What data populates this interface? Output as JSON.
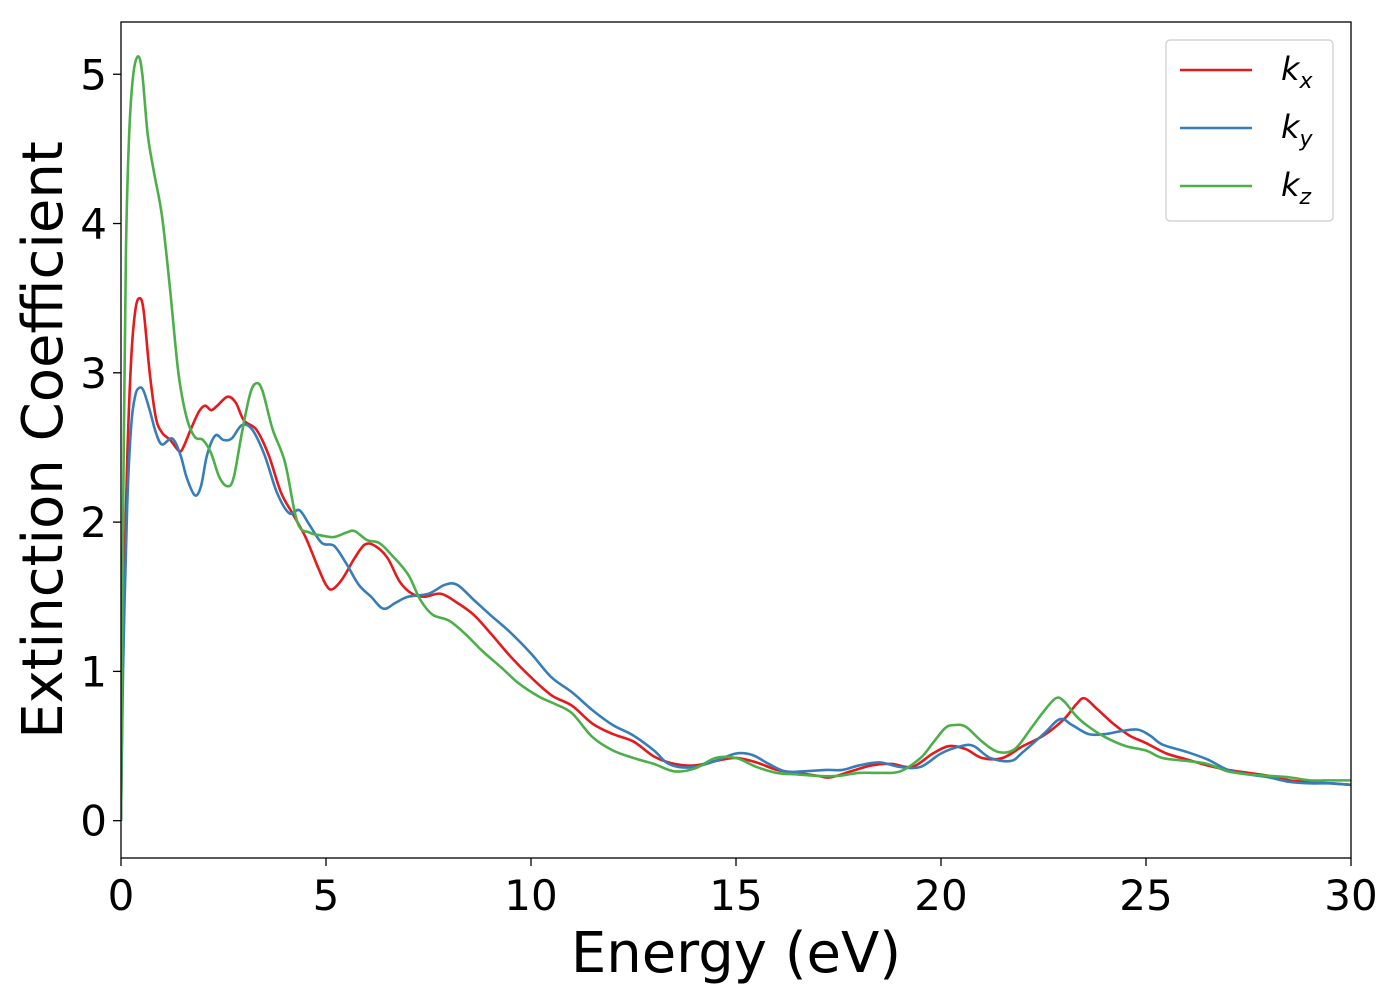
{
  "chart_data": {
    "type": "line",
    "xlabel": "Energy (eV)",
    "ylabel": "Extinction Coefficient",
    "xlim": [
      0,
      30
    ],
    "ylim": [
      -0.25,
      5.35
    ],
    "xticks": [
      0,
      5,
      10,
      15,
      20,
      25,
      30
    ],
    "yticks": [
      0,
      1,
      2,
      3,
      4,
      5
    ],
    "xtick_labels": [
      "0",
      "5",
      "10",
      "15",
      "20",
      "25",
      "30"
    ],
    "ytick_labels": [
      "0",
      "1",
      "2",
      "3",
      "4",
      "5"
    ],
    "grid": false,
    "legend_position": "top-right",
    "series": [
      {
        "name": "k_x",
        "label_main": "k",
        "label_sub": "x",
        "color": "#e41a1c",
        "points": [
          [
            0,
            0
          ],
          [
            0.05,
            1.2
          ],
          [
            0.15,
            2.4
          ],
          [
            0.25,
            3.1
          ],
          [
            0.35,
            3.42
          ],
          [
            0.45,
            3.5
          ],
          [
            0.55,
            3.42
          ],
          [
            0.7,
            3.0
          ],
          [
            0.85,
            2.7
          ],
          [
            1.0,
            2.6
          ],
          [
            1.2,
            2.55
          ],
          [
            1.4,
            2.48
          ],
          [
            1.5,
            2.49
          ],
          [
            1.7,
            2.62
          ],
          [
            1.9,
            2.74
          ],
          [
            2.05,
            2.78
          ],
          [
            2.2,
            2.75
          ],
          [
            2.35,
            2.78
          ],
          [
            2.6,
            2.84
          ],
          [
            2.8,
            2.8
          ],
          [
            3.0,
            2.68
          ],
          [
            3.3,
            2.62
          ],
          [
            3.6,
            2.45
          ],
          [
            3.9,
            2.2
          ],
          [
            4.2,
            2.05
          ],
          [
            4.5,
            1.9
          ],
          [
            4.8,
            1.7
          ],
          [
            5.0,
            1.58
          ],
          [
            5.15,
            1.55
          ],
          [
            5.4,
            1.62
          ],
          [
            5.7,
            1.76
          ],
          [
            5.95,
            1.85
          ],
          [
            6.2,
            1.84
          ],
          [
            6.5,
            1.76
          ],
          [
            6.8,
            1.6
          ],
          [
            7.1,
            1.52
          ],
          [
            7.4,
            1.5
          ],
          [
            7.8,
            1.52
          ],
          [
            8.2,
            1.46
          ],
          [
            8.6,
            1.38
          ],
          [
            9.0,
            1.26
          ],
          [
            9.5,
            1.1
          ],
          [
            10.0,
            0.96
          ],
          [
            10.5,
            0.84
          ],
          [
            11.0,
            0.77
          ],
          [
            11.5,
            0.65
          ],
          [
            12.0,
            0.58
          ],
          [
            12.5,
            0.53
          ],
          [
            13.0,
            0.43
          ],
          [
            13.5,
            0.38
          ],
          [
            14.0,
            0.37
          ],
          [
            14.5,
            0.4
          ],
          [
            15.0,
            0.42
          ],
          [
            15.5,
            0.39
          ],
          [
            16.0,
            0.34
          ],
          [
            16.5,
            0.32
          ],
          [
            17.0,
            0.3
          ],
          [
            17.3,
            0.29
          ],
          [
            17.8,
            0.33
          ],
          [
            18.3,
            0.37
          ],
          [
            18.8,
            0.38
          ],
          [
            19.3,
            0.36
          ],
          [
            19.8,
            0.45
          ],
          [
            20.2,
            0.5
          ],
          [
            20.6,
            0.48
          ],
          [
            21.0,
            0.42
          ],
          [
            21.5,
            0.42
          ],
          [
            22.0,
            0.5
          ],
          [
            22.5,
            0.57
          ],
          [
            23.0,
            0.68
          ],
          [
            23.3,
            0.78
          ],
          [
            23.5,
            0.82
          ],
          [
            23.8,
            0.75
          ],
          [
            24.2,
            0.65
          ],
          [
            24.6,
            0.57
          ],
          [
            25.0,
            0.52
          ],
          [
            25.5,
            0.45
          ],
          [
            26.0,
            0.41
          ],
          [
            26.5,
            0.37
          ],
          [
            27.0,
            0.34
          ],
          [
            27.5,
            0.32
          ],
          [
            28.0,
            0.3
          ],
          [
            28.5,
            0.27
          ],
          [
            29.0,
            0.26
          ],
          [
            29.5,
            0.25
          ],
          [
            30.0,
            0.24
          ]
        ]
      },
      {
        "name": "k_y",
        "label_main": "k",
        "label_sub": "y",
        "color": "#377eb8",
        "points": [
          [
            0,
            0
          ],
          [
            0.05,
            1.0
          ],
          [
            0.15,
            2.1
          ],
          [
            0.25,
            2.65
          ],
          [
            0.35,
            2.85
          ],
          [
            0.45,
            2.9
          ],
          [
            0.55,
            2.88
          ],
          [
            0.7,
            2.75
          ],
          [
            0.85,
            2.6
          ],
          [
            1.0,
            2.52
          ],
          [
            1.25,
            2.56
          ],
          [
            1.45,
            2.45
          ],
          [
            1.6,
            2.3
          ],
          [
            1.8,
            2.18
          ],
          [
            1.95,
            2.24
          ],
          [
            2.1,
            2.45
          ],
          [
            2.3,
            2.58
          ],
          [
            2.5,
            2.55
          ],
          [
            2.7,
            2.56
          ],
          [
            2.95,
            2.65
          ],
          [
            3.2,
            2.62
          ],
          [
            3.5,
            2.45
          ],
          [
            3.8,
            2.2
          ],
          [
            4.1,
            2.06
          ],
          [
            4.35,
            2.08
          ],
          [
            4.6,
            1.98
          ],
          [
            4.9,
            1.86
          ],
          [
            5.2,
            1.84
          ],
          [
            5.5,
            1.72
          ],
          [
            5.8,
            1.58
          ],
          [
            6.1,
            1.5
          ],
          [
            6.4,
            1.42
          ],
          [
            6.7,
            1.46
          ],
          [
            7.0,
            1.5
          ],
          [
            7.5,
            1.52
          ],
          [
            7.9,
            1.58
          ],
          [
            8.2,
            1.58
          ],
          [
            8.6,
            1.48
          ],
          [
            9.0,
            1.38
          ],
          [
            9.5,
            1.26
          ],
          [
            10.0,
            1.12
          ],
          [
            10.5,
            0.96
          ],
          [
            11.0,
            0.86
          ],
          [
            11.5,
            0.74
          ],
          [
            12.0,
            0.64
          ],
          [
            12.5,
            0.57
          ],
          [
            13.0,
            0.47
          ],
          [
            13.3,
            0.39
          ],
          [
            13.6,
            0.36
          ],
          [
            14.0,
            0.36
          ],
          [
            14.5,
            0.4
          ],
          [
            15.0,
            0.45
          ],
          [
            15.4,
            0.44
          ],
          [
            15.8,
            0.38
          ],
          [
            16.2,
            0.33
          ],
          [
            16.6,
            0.33
          ],
          [
            17.2,
            0.34
          ],
          [
            17.6,
            0.34
          ],
          [
            18.0,
            0.37
          ],
          [
            18.5,
            0.39
          ],
          [
            19.0,
            0.36
          ],
          [
            19.5,
            0.36
          ],
          [
            20.0,
            0.45
          ],
          [
            20.5,
            0.5
          ],
          [
            20.8,
            0.5
          ],
          [
            21.2,
            0.42
          ],
          [
            21.7,
            0.4
          ],
          [
            22.0,
            0.46
          ],
          [
            22.5,
            0.58
          ],
          [
            22.9,
            0.68
          ],
          [
            23.2,
            0.64
          ],
          [
            23.6,
            0.58
          ],
          [
            24.0,
            0.58
          ],
          [
            24.4,
            0.6
          ],
          [
            24.8,
            0.61
          ],
          [
            25.1,
            0.57
          ],
          [
            25.4,
            0.51
          ],
          [
            26.0,
            0.46
          ],
          [
            26.5,
            0.41
          ],
          [
            27.0,
            0.34
          ],
          [
            27.5,
            0.31
          ],
          [
            28.0,
            0.29
          ],
          [
            28.5,
            0.26
          ],
          [
            29.0,
            0.25
          ],
          [
            29.5,
            0.25
          ],
          [
            30.0,
            0.24
          ]
        ]
      },
      {
        "name": "k_z",
        "label_main": "k",
        "label_sub": "z",
        "color": "#4daf4a",
        "points": [
          [
            0,
            0
          ],
          [
            0.05,
            2.0
          ],
          [
            0.12,
            3.8
          ],
          [
            0.2,
            4.6
          ],
          [
            0.3,
            5.0
          ],
          [
            0.42,
            5.12
          ],
          [
            0.52,
            5.0
          ],
          [
            0.65,
            4.6
          ],
          [
            0.8,
            4.35
          ],
          [
            1.0,
            4.05
          ],
          [
            1.2,
            3.55
          ],
          [
            1.4,
            3.0
          ],
          [
            1.6,
            2.7
          ],
          [
            1.8,
            2.57
          ],
          [
            2.0,
            2.55
          ],
          [
            2.2,
            2.46
          ],
          [
            2.4,
            2.3
          ],
          [
            2.6,
            2.24
          ],
          [
            2.75,
            2.3
          ],
          [
            2.95,
            2.6
          ],
          [
            3.15,
            2.86
          ],
          [
            3.3,
            2.93
          ],
          [
            3.45,
            2.88
          ],
          [
            3.7,
            2.62
          ],
          [
            4.0,
            2.4
          ],
          [
            4.3,
            2.0
          ],
          [
            4.6,
            1.93
          ],
          [
            4.9,
            1.91
          ],
          [
            5.2,
            1.9
          ],
          [
            5.5,
            1.93
          ],
          [
            5.7,
            1.94
          ],
          [
            6.0,
            1.88
          ],
          [
            6.3,
            1.86
          ],
          [
            6.6,
            1.78
          ],
          [
            7.0,
            1.65
          ],
          [
            7.3,
            1.48
          ],
          [
            7.6,
            1.38
          ],
          [
            8.0,
            1.34
          ],
          [
            8.4,
            1.25
          ],
          [
            8.8,
            1.14
          ],
          [
            9.3,
            1.02
          ],
          [
            9.7,
            0.92
          ],
          [
            10.2,
            0.83
          ],
          [
            10.6,
            0.78
          ],
          [
            11.0,
            0.72
          ],
          [
            11.5,
            0.56
          ],
          [
            12.0,
            0.47
          ],
          [
            12.5,
            0.42
          ],
          [
            13.0,
            0.38
          ],
          [
            13.5,
            0.33
          ],
          [
            14.0,
            0.35
          ],
          [
            14.5,
            0.42
          ],
          [
            15.0,
            0.42
          ],
          [
            15.5,
            0.36
          ],
          [
            16.0,
            0.32
          ],
          [
            16.5,
            0.31
          ],
          [
            17.0,
            0.3
          ],
          [
            17.5,
            0.3
          ],
          [
            18.0,
            0.32
          ],
          [
            18.5,
            0.32
          ],
          [
            19.0,
            0.33
          ],
          [
            19.5,
            0.42
          ],
          [
            19.8,
            0.52
          ],
          [
            20.1,
            0.62
          ],
          [
            20.3,
            0.64
          ],
          [
            20.6,
            0.63
          ],
          [
            21.0,
            0.53
          ],
          [
            21.4,
            0.46
          ],
          [
            21.8,
            0.48
          ],
          [
            22.2,
            0.62
          ],
          [
            22.5,
            0.73
          ],
          [
            22.8,
            0.82
          ],
          [
            23.0,
            0.8
          ],
          [
            23.3,
            0.7
          ],
          [
            23.6,
            0.63
          ],
          [
            24.0,
            0.56
          ],
          [
            24.5,
            0.5
          ],
          [
            25.0,
            0.47
          ],
          [
            25.4,
            0.42
          ],
          [
            26.0,
            0.4
          ],
          [
            26.5,
            0.38
          ],
          [
            27.0,
            0.33
          ],
          [
            27.5,
            0.31
          ],
          [
            28.0,
            0.3
          ],
          [
            28.5,
            0.29
          ],
          [
            29.0,
            0.27
          ],
          [
            29.5,
            0.27
          ],
          [
            30.0,
            0.27
          ]
        ]
      }
    ]
  }
}
